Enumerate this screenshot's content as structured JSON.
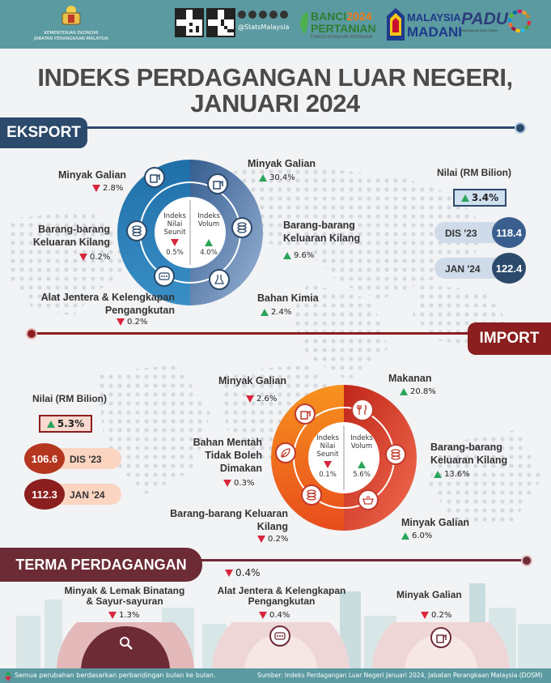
{
  "header": {
    "ministry_line1": "KEMENTERIAN EKONOMI",
    "ministry_line2": "JABATAN PERANGKAAN MALAYSIA",
    "social_handle": "@StatsMalaysia",
    "banci_line1": "BANCI",
    "banci_year": "2024",
    "banci_line2": "PERTANIAN",
    "banci_tagline": "FUNGSI KEMAJUAN PERTANIAN",
    "madani_line1": "MALAYSIA",
    "madani_line2": "MADANI",
    "padu_text": "PADU",
    "padu_sub": "PANGKALAN DATA UTAMA"
  },
  "title": {
    "line1": "INDEKS PERDAGANGAN LUAR NEGERI,",
    "line2": "JANUARI 2024"
  },
  "eksport": {
    "label": "EKSPORT",
    "nilai_label": "Nilai (RM Bilion)",
    "nilai_change": "3.4%",
    "dis_label": "DIS '23",
    "dis_value": "118.4",
    "jan_label": "JAN '24",
    "jan_value": "122.4",
    "inner_left": [
      "Indeks",
      "Nilai",
      "Seunit"
    ],
    "inner_left_val": "0.5%",
    "inner_right": [
      "Indeks",
      "Volum"
    ],
    "inner_right_val": "4.0%",
    "items": [
      {
        "name": "Minyak Galian",
        "val": "2.8%"
      },
      {
        "name1": "Barang-barang",
        "name2": "Keluaran Kilang",
        "val": "0.2%"
      },
      {
        "name1": "Alat Jentera & Kelengkapan",
        "name2": "Pengangkutan",
        "val": "0.2%"
      },
      {
        "name": "Minyak Galian",
        "val": "30.4%"
      },
      {
        "name1": "Barang-barang",
        "name2": "Keluaran Kilang",
        "val": "9.6%"
      },
      {
        "name": "Bahan Kimia",
        "val": "2.4%"
      }
    ]
  },
  "import": {
    "label": "IMPORT",
    "nilai_label": "Nilai (RM Bilion)",
    "nilai_change": "5.3%",
    "dis_label": "DIS '23",
    "dis_value": "106.6",
    "jan_label": "JAN '24",
    "jan_value": "112.3",
    "inner_left": [
      "Indeks",
      "Nilai",
      "Seunit"
    ],
    "inner_left_val": "0.1%",
    "inner_right": [
      "Indeks",
      "Volum"
    ],
    "inner_right_val": "5.6%",
    "items": [
      {
        "name": "Minyak Galian",
        "val": "2.6%"
      },
      {
        "name1": "Bahan Mentah",
        "name2": "Tidak Boleh",
        "name3": "Dimakan",
        "val": "0.3%"
      },
      {
        "name1": "Barang-barang Keluaran",
        "name2": "Kilang",
        "val": "0.2%"
      },
      {
        "name": "Makanan",
        "val": "20.8%"
      },
      {
        "name1": "Barang-barang",
        "name2": "Keluaran Kilang",
        "val": "13.6%"
      },
      {
        "name": "Minyak Galian",
        "val": "6.0%"
      }
    ]
  },
  "terma": {
    "label": "TERMA PERDAGANGAN",
    "change": "0.4%",
    "items": [
      {
        "name1": "Minyak & Lemak Binatang",
        "name2": "& Sayur-sayuran",
        "val": "1.3%"
      },
      {
        "name1": "Alat Jentera & Kelengkapan",
        "name2": "Pengangkutan",
        "val": "0.4%"
      },
      {
        "name": "Minyak Galian",
        "val": "0.2%"
      }
    ]
  },
  "footer": {
    "note": "Semua perubahan berdasarkan perbandingan bulan ke bulan.",
    "source": "Sumber: Indeks Perdagangan Luar Negeri Januari 2024, Jabatan Perangkaan Malaysia (DOSM)"
  },
  "colors": {
    "teal": "#5b9aa0",
    "navy": "#2c4a6b",
    "blue": "#3a6fa8",
    "maroon": "#8b1e1e",
    "wine": "#6d2b36",
    "up": "#2aa55a",
    "down": "#d7263d",
    "orange": "#f07a1a"
  },
  "icons": [
    "qr-code-icon",
    "social-media-icons",
    "sdg-wheel-icon",
    "pump-icon",
    "barrel-stack-icon",
    "gauge-icon",
    "beaker-icon",
    "leaf-icon",
    "fork-knife-icon",
    "pan-food-icon"
  ]
}
